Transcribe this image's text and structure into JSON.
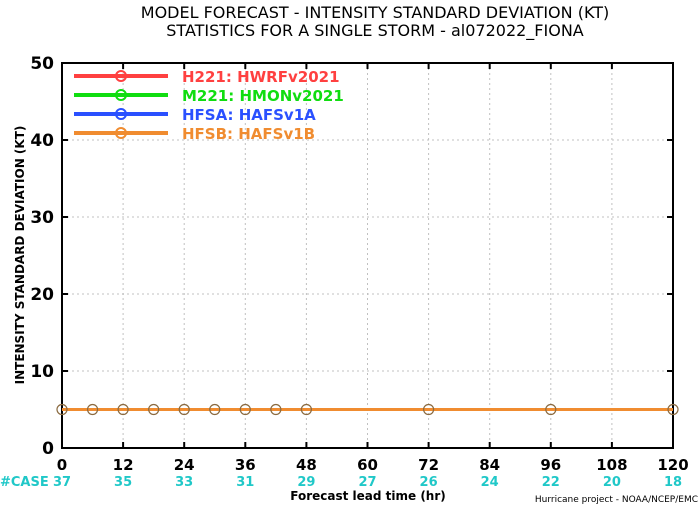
{
  "chart_data": {
    "type": "line",
    "title": "MODEL FORECAST - INTENSITY STANDARD DEVIATION (KT)",
    "subtitle": "STATISTICS FOR A SINGLE STORM - al072022_FIONA",
    "xlabel": "Forecast lead time (hr)",
    "ylabel": "INTENSITY STANDARD DEVIATION (KT)",
    "xlim": [
      0,
      120
    ],
    "ylim": [
      0,
      50
    ],
    "xticks": [
      0,
      12,
      24,
      36,
      48,
      60,
      72,
      84,
      96,
      108,
      120
    ],
    "yticks": [
      0,
      10,
      20,
      30,
      40,
      50
    ],
    "grid": true,
    "legend_position": "top-left",
    "series": [
      {
        "name": "H221: HWRFv2021",
        "color": "#ff4040",
        "x": [],
        "y": []
      },
      {
        "name": "M221: HMONv2021",
        "color": "#10dd10",
        "x": [],
        "y": []
      },
      {
        "name": "HFSA: HAFSv1A",
        "color": "#2a50ff",
        "x": [],
        "y": []
      },
      {
        "name": "HFSB: HAFSv1B",
        "color": "#f08c30",
        "x": [
          0,
          6,
          12,
          18,
          24,
          30,
          36,
          42,
          48,
          72,
          96,
          120
        ],
        "y": [
          5,
          5,
          5,
          5,
          5,
          5,
          5,
          5,
          5,
          5,
          5,
          5
        ]
      }
    ],
    "case_label": "#CASE",
    "case_color": "#20c8c8",
    "cases": [
      {
        "x": 0,
        "n": "37"
      },
      {
        "x": 12,
        "n": "35"
      },
      {
        "x": 24,
        "n": "33"
      },
      {
        "x": 36,
        "n": "31"
      },
      {
        "x": 48,
        "n": "29"
      },
      {
        "x": 60,
        "n": "27"
      },
      {
        "x": 72,
        "n": "26"
      },
      {
        "x": 84,
        "n": "24"
      },
      {
        "x": 96,
        "n": "22"
      },
      {
        "x": 108,
        "n": "20"
      },
      {
        "x": 120,
        "n": "18"
      }
    ],
    "credit": "Hurricane project - NOAA/NCEP/EMC"
  }
}
